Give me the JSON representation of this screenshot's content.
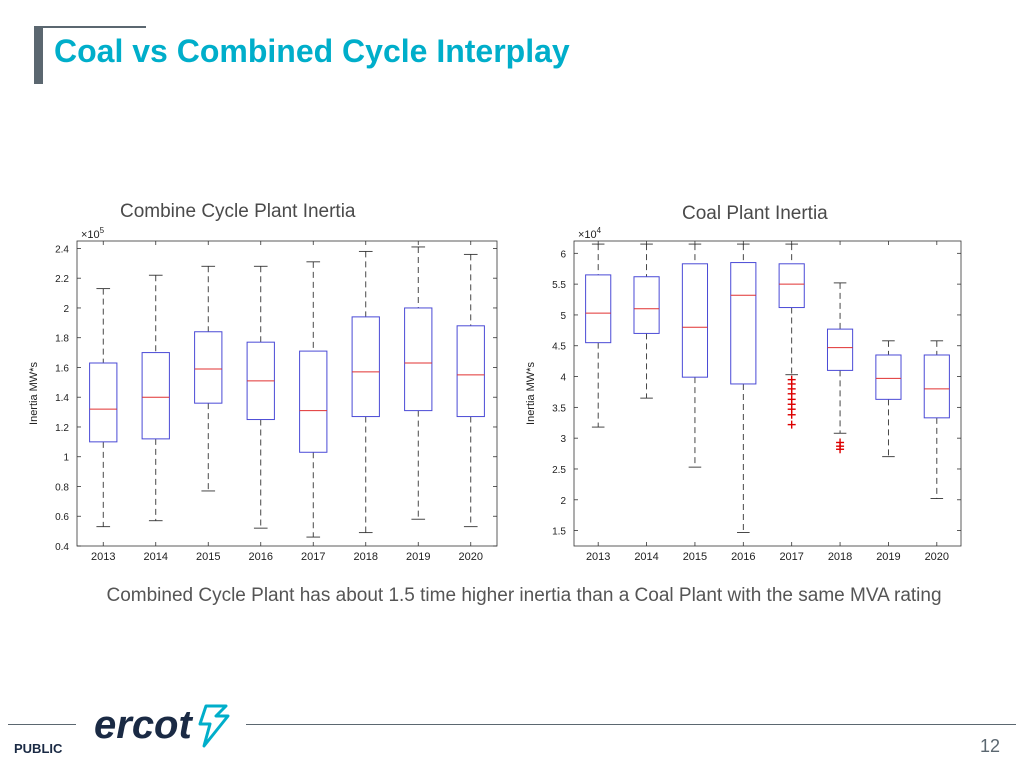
{
  "slide": {
    "title": "Coal vs Combined Cycle Interplay",
    "caption": "Combined Cycle Plant has about 1.5 time higher inertia than a Coal Plant with the same MVA rating",
    "footer_label": "PUBLIC",
    "page_number": "12",
    "logo_text": "ercot",
    "title_color": "#00aeca",
    "accent_color": "#5b6770"
  },
  "chart_data": [
    {
      "type": "box",
      "title": "Combine Cycle Plant Inertia",
      "ylabel": "Inertia MW*s",
      "exponent_label": "10",
      "exponent_power": "5",
      "ylim": [
        0.4,
        2.45
      ],
      "yticks": [
        0.4,
        0.6,
        0.8,
        1,
        1.2,
        1.4,
        1.6,
        1.8,
        2,
        2.2,
        2.4
      ],
      "ytick_labels": [
        "0.4",
        "0.6",
        "0.8",
        "1",
        "1.2",
        "1.4",
        "1.6",
        "1.8",
        "2",
        "2.2",
        "2.4"
      ],
      "categories": [
        "2013",
        "2014",
        "2015",
        "2016",
        "2017",
        "2018",
        "2019",
        "2020"
      ],
      "boxes": [
        {
          "min": 0.53,
          "q1": 1.1,
          "median": 1.32,
          "q3": 1.63,
          "max": 2.13,
          "outliers": []
        },
        {
          "min": 0.57,
          "q1": 1.12,
          "median": 1.4,
          "q3": 1.7,
          "max": 2.22,
          "outliers": []
        },
        {
          "min": 0.77,
          "q1": 1.36,
          "median": 1.59,
          "q3": 1.84,
          "max": 2.28,
          "outliers": []
        },
        {
          "min": 0.52,
          "q1": 1.25,
          "median": 1.51,
          "q3": 1.77,
          "max": 2.28,
          "outliers": []
        },
        {
          "min": 0.46,
          "q1": 1.03,
          "median": 1.31,
          "q3": 1.71,
          "max": 2.31,
          "outliers": []
        },
        {
          "min": 0.49,
          "q1": 1.27,
          "median": 1.57,
          "q3": 1.94,
          "max": 2.38,
          "outliers": []
        },
        {
          "min": 0.58,
          "q1": 1.31,
          "median": 1.63,
          "q3": 2.0,
          "max": 2.41,
          "outliers": []
        },
        {
          "min": 0.53,
          "q1": 1.27,
          "median": 1.55,
          "q3": 1.88,
          "max": 2.36,
          "outliers": []
        }
      ],
      "grid": false,
      "box_color": "#4a4ad6",
      "median_color": "#e03030",
      "whisker_color": "#333333",
      "outlier_color": "#dd0000"
    },
    {
      "type": "box",
      "title": "Coal Plant Inertia",
      "ylabel": "Inertia MW*s",
      "exponent_label": "10",
      "exponent_power": "4",
      "ylim": [
        1.25,
        6.2
      ],
      "yticks": [
        1.5,
        2,
        2.5,
        3,
        3.5,
        4,
        4.5,
        5,
        5.5,
        6
      ],
      "ytick_labels": [
        "1.5",
        "2",
        "2.5",
        "3",
        "3.5",
        "4",
        "4.5",
        "5",
        "5.5",
        "6"
      ],
      "categories": [
        "2013",
        "2014",
        "2015",
        "2016",
        "2017",
        "2018",
        "2019",
        "2020"
      ],
      "boxes": [
        {
          "min": 3.18,
          "q1": 4.55,
          "median": 5.03,
          "q3": 5.65,
          "max": 6.15,
          "outliers": []
        },
        {
          "min": 3.65,
          "q1": 4.7,
          "median": 5.1,
          "q3": 5.62,
          "max": 6.15,
          "outliers": []
        },
        {
          "min": 2.53,
          "q1": 3.99,
          "median": 4.8,
          "q3": 5.83,
          "max": 6.15,
          "outliers": []
        },
        {
          "min": 1.47,
          "q1": 3.88,
          "median": 5.32,
          "q3": 5.85,
          "max": 6.15,
          "outliers": []
        },
        {
          "min": 4.03,
          "q1": 5.12,
          "median": 5.5,
          "q3": 5.83,
          "max": 6.15,
          "outliers": [
            3.95,
            3.88,
            3.8,
            3.72,
            3.63,
            3.55,
            3.47,
            3.38,
            3.22
          ]
        },
        {
          "min": 3.08,
          "q1": 4.1,
          "median": 4.47,
          "q3": 4.77,
          "max": 5.52,
          "outliers": [
            2.93,
            2.87,
            2.82
          ]
        },
        {
          "min": 2.7,
          "q1": 3.63,
          "median": 3.97,
          "q3": 4.35,
          "max": 4.58,
          "outliers": []
        },
        {
          "min": 2.02,
          "q1": 3.33,
          "median": 3.8,
          "q3": 4.35,
          "max": 4.58,
          "outliers": []
        }
      ],
      "grid": false,
      "box_color": "#4a4ad6",
      "median_color": "#e03030",
      "whisker_color": "#333333",
      "outlier_color": "#dd0000"
    }
  ]
}
